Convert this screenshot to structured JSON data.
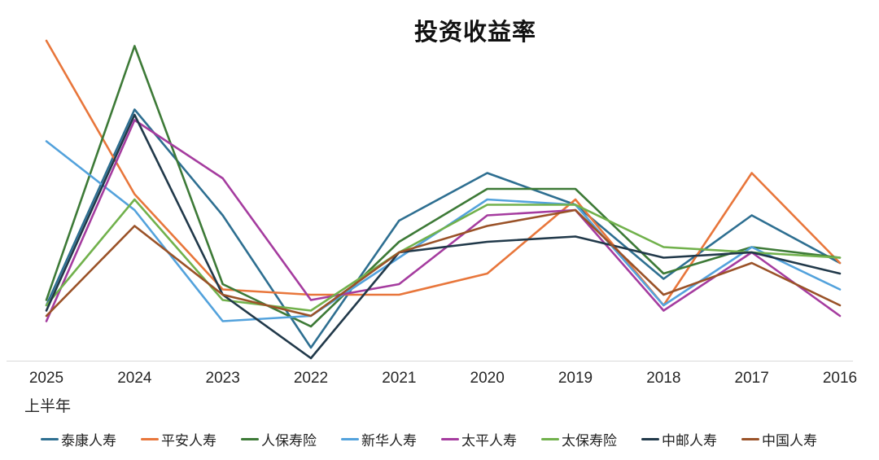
{
  "title": "投资收益率",
  "x_axis": {
    "sub_label": "上半年"
  },
  "chart_data": {
    "type": "line",
    "title": "投资收益率",
    "categories": [
      "2025",
      "2024",
      "2023",
      "2022",
      "2021",
      "2020",
      "2019",
      "2018",
      "2017",
      "2016"
    ],
    "first_category_note": "上半年",
    "xlabel": "",
    "ylabel": "",
    "ylim": [
      0.5,
      7.5
    ],
    "grid": false,
    "y_axis_visible": false,
    "legend_position": "bottom",
    "axis_line_color": "#d9d9d9",
    "series": [
      {
        "id": "taikang-life",
        "name": "泰康人寿",
        "color": "#2e6f91",
        "values": [
          2.0,
          5.7,
          3.7,
          1.2,
          3.6,
          4.5,
          3.9,
          2.5,
          3.7,
          2.8
        ]
      },
      {
        "id": "pingan-life",
        "name": "平安人寿",
        "color": "#e8763b",
        "values": [
          7.0,
          4.1,
          2.3,
          2.2,
          2.2,
          2.6,
          4.0,
          2.0,
          4.5,
          2.8
        ]
      },
      {
        "id": "picc-life",
        "name": "人保寿险",
        "color": "#3d7a37",
        "values": [
          2.1,
          6.9,
          2.4,
          1.6,
          3.2,
          4.2,
          4.2,
          2.6,
          3.1,
          2.9
        ]
      },
      {
        "id": "xinhua-life",
        "name": "新华人寿",
        "color": "#53a2dc",
        "values": [
          5.1,
          3.8,
          1.7,
          1.8,
          2.9,
          4.0,
          3.9,
          2.0,
          3.1,
          2.3
        ]
      },
      {
        "id": "taiping-life",
        "name": "太平人寿",
        "color": "#a53c9f",
        "values": [
          1.7,
          5.5,
          4.4,
          2.1,
          2.4,
          3.7,
          3.8,
          1.9,
          3.0,
          1.8
        ]
      },
      {
        "id": "cpic-life",
        "name": "太保寿险",
        "color": "#71b14c",
        "values": [
          2.0,
          4.0,
          2.1,
          1.9,
          3.0,
          3.9,
          3.9,
          3.1,
          3.0,
          2.9
        ]
      },
      {
        "id": "china-post-life",
        "name": "中邮人寿",
        "color": "#21394a",
        "values": [
          1.9,
          5.6,
          2.2,
          1.0,
          3.0,
          3.2,
          3.3,
          2.9,
          3.0,
          2.6
        ]
      },
      {
        "id": "china-life",
        "name": "中国人寿",
        "color": "#9a5228",
        "values": [
          1.8,
          3.5,
          2.2,
          1.8,
          3.0,
          3.5,
          3.8,
          2.2,
          2.8,
          2.0
        ]
      }
    ]
  }
}
